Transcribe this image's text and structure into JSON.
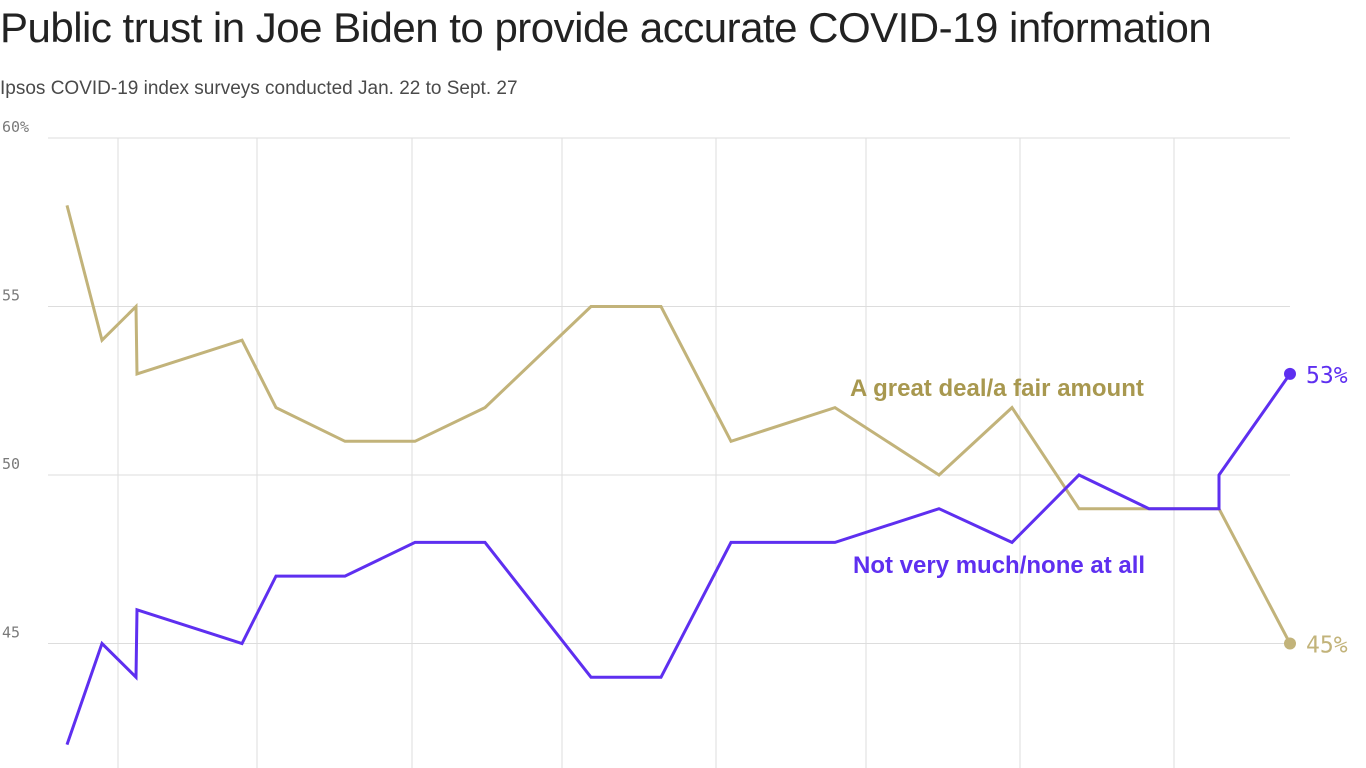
{
  "header": {
    "title": "Public trust in Joe Biden to provide accurate COVID-19 information",
    "subtitle": "Ipsos COVID-19 index surveys conducted Jan. 22 to Sept. 27"
  },
  "colors": {
    "great_deal": "#c2b37a",
    "not_much": "#5e2ff0",
    "grid": "#dddddd"
  },
  "chart_data": {
    "type": "line",
    "title": "Public trust in Joe Biden to provide accurate COVID-19 information",
    "subtitle": "Ipsos COVID-19 index surveys conducted Jan. 22 to Sept. 27",
    "ylim": [
      42,
      60
    ],
    "y_ticks": [
      45,
      50,
      55,
      60
    ],
    "y_tick_labels": [
      "45",
      "50",
      "55",
      "60%"
    ],
    "grid": true,
    "x_tick_labels_visible": false,
    "x": [
      1,
      2,
      3,
      3.2,
      4,
      5,
      6,
      7,
      8,
      9,
      10,
      11,
      12,
      13,
      14,
      15,
      16,
      17,
      18,
      19
    ],
    "series": [
      {
        "name": "A great deal/a fair amount",
        "values": [
          58,
          54,
          55,
          53,
          54,
          52,
          51,
          51,
          52,
          55,
          55,
          51,
          52,
          50,
          52,
          49,
          49,
          49,
          49,
          45
        ],
        "end_label": "45%"
      },
      {
        "name": "Not very much/none at all",
        "values": [
          42,
          45,
          44,
          46,
          45,
          47,
          47,
          48,
          48,
          44,
          44,
          48,
          48,
          49,
          48,
          50,
          49,
          49,
          50,
          53
        ],
        "end_label": "53%"
      }
    ]
  }
}
